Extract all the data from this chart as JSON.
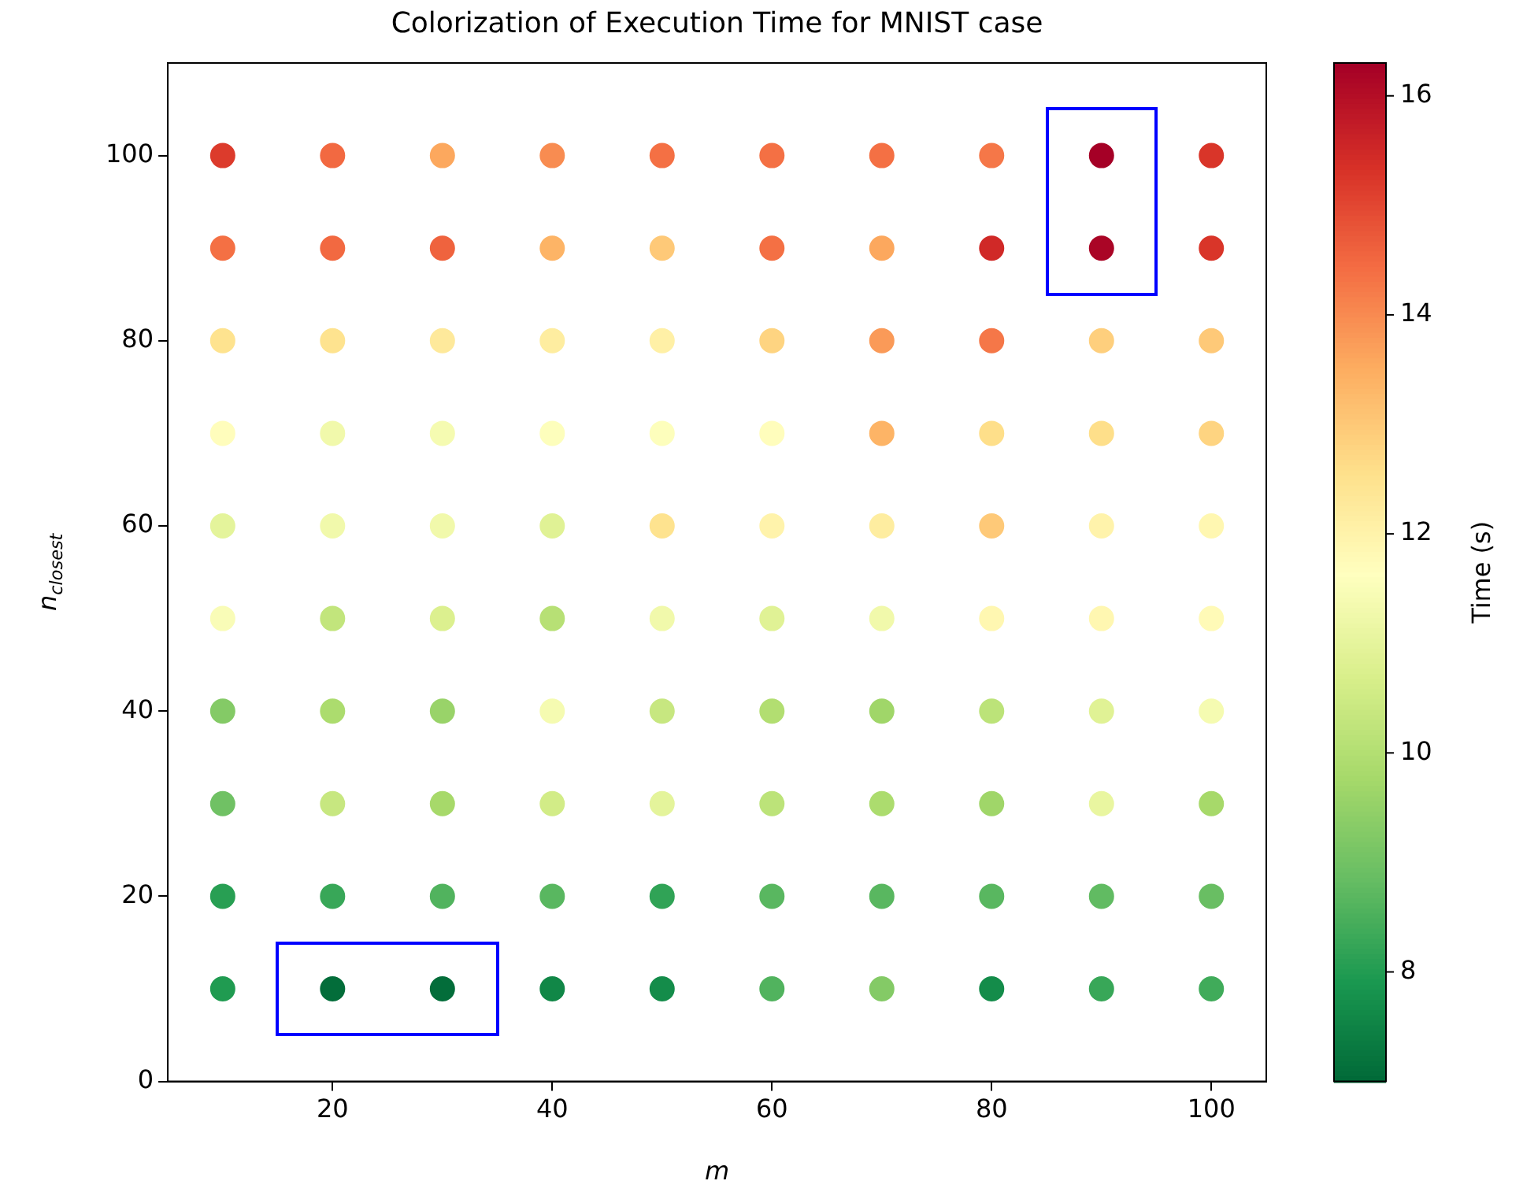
{
  "chart_data": {
    "type": "scatter",
    "title": "Colorization of Execution Time for MNIST case",
    "xlabel": "m",
    "ylabel": "n$_{closest}$",
    "clabel": "Time (s)",
    "xlim": [
      5,
      105
    ],
    "xticks": [
      20,
      40,
      60,
      80,
      100
    ],
    "ylim": [
      0,
      110
    ],
    "yticks": [
      0,
      20,
      40,
      60,
      80,
      100
    ],
    "clim": [
      7.0,
      16.3
    ],
    "cticks": [
      8,
      10,
      12,
      14,
      16
    ],
    "grid": false,
    "legend": false,
    "marker": "circle",
    "series": [
      {
        "x": [
          10,
          20,
          30,
          40,
          50,
          60,
          70,
          80,
          90,
          100
        ],
        "values": [
          100,
          100,
          100,
          100,
          100,
          100,
          100,
          100,
          100,
          100
        ],
        "cvalues": [
          15.2,
          14.5,
          13.6,
          14.0,
          14.4,
          14.4,
          14.4,
          14.3,
          16.3,
          15.3
        ],
        "colors": [
          "#dc3b2c",
          "#f26941",
          "#fca85e",
          "#f88c51",
          "#f47044",
          "#f47044",
          "#f47044",
          "#f57748",
          "#a50026",
          "#d93529"
        ]
      },
      {
        "x": [
          10,
          20,
          30,
          40,
          50,
          60,
          70,
          80,
          90,
          100
        ],
        "values": [
          90,
          90,
          90,
          90,
          90,
          90,
          90,
          90,
          90,
          90
        ],
        "cvalues": [
          14.4,
          14.5,
          14.6,
          13.4,
          13.0,
          14.4,
          13.6,
          15.5,
          16.2,
          15.3
        ],
        "colors": [
          "#f47044",
          "#f26941",
          "#ef633e",
          "#fdb466",
          "#fec978",
          "#f47044",
          "#fca85e",
          "#d02927",
          "#aa0526",
          "#d93529"
        ]
      },
      {
        "x": [
          10,
          20,
          30,
          40,
          50,
          60,
          70,
          80,
          90,
          100
        ],
        "values": [
          80,
          80,
          80,
          80,
          80,
          80,
          80,
          80,
          80,
          80
        ],
        "cvalues": [
          12.5,
          12.5,
          12.3,
          12.2,
          12.1,
          12.8,
          13.8,
          14.3,
          12.9,
          13.0
        ],
        "colors": [
          "#fee38f",
          "#fee38f",
          "#fee99b",
          "#feeda0",
          "#fff0a6",
          "#fed481",
          "#fa9a58",
          "#f57748",
          "#fecf7d",
          "#fec978"
        ]
      },
      {
        "x": [
          10,
          20,
          30,
          40,
          50,
          60,
          70,
          80,
          90,
          100
        ],
        "values": [
          70,
          70,
          70,
          70,
          70,
          70,
          70,
          70,
          70,
          70
        ],
        "cvalues": [
          11.7,
          11.3,
          11.4,
          11.6,
          11.6,
          11.7,
          13.4,
          12.6,
          12.6,
          12.8
        ],
        "colors": [
          "#fffdbc",
          "#f1f9ab",
          "#f5fbb1",
          "#fdfebc",
          "#fdfebc",
          "#fffdbc",
          "#fdb466",
          "#fedf8a",
          "#fedf8a",
          "#fed481"
        ]
      },
      {
        "x": [
          10,
          20,
          30,
          40,
          50,
          60,
          70,
          80,
          90,
          100
        ],
        "values": [
          60,
          60,
          60,
          60,
          60,
          60,
          60,
          60,
          60,
          60
        ],
        "cvalues": [
          11.0,
          11.3,
          11.3,
          10.9,
          12.5,
          12.0,
          12.2,
          13.0,
          12.0,
          11.9
        ],
        "colors": [
          "#e4f49b",
          "#f1f9ab",
          "#f1f9ab",
          "#e0f295",
          "#fee38f",
          "#fff3ab",
          "#feeda0",
          "#fec978",
          "#fff3ab",
          "#fff7b1"
        ]
      },
      {
        "x": [
          10,
          20,
          30,
          40,
          50,
          60,
          70,
          80,
          90,
          100
        ],
        "values": [
          50,
          50,
          50,
          50,
          50,
          50,
          50,
          50,
          50,
          50
        ],
        "cvalues": [
          11.5,
          10.3,
          10.8,
          10.1,
          11.3,
          10.9,
          11.3,
          11.9,
          11.9,
          11.8
        ],
        "colors": [
          "#f9fcb7",
          "#c2e57c",
          "#dcf08f",
          "#b7e075",
          "#f1f9ab",
          "#e0f295",
          "#f1f9ab",
          "#fff7b1",
          "#fff7b1",
          "#fffab7"
        ]
      },
      {
        "x": [
          10,
          20,
          30,
          40,
          50,
          60,
          70,
          80,
          90,
          100
        ],
        "values": [
          40,
          40,
          40,
          40,
          40,
          40,
          40,
          40,
          40,
          40
        ],
        "cvalues": [
          9.3,
          9.9,
          9.6,
          11.4,
          10.4,
          10.0,
          9.7,
          10.2,
          10.9,
          11.4
        ],
        "colors": [
          "#84ca66",
          "#acdc6e",
          "#99d369",
          "#f5fbb1",
          "#c7e780",
          "#b2de71",
          "#a0d669",
          "#bce379",
          "#e0f295",
          "#f5fbb1"
        ]
      },
      {
        "x": [
          10,
          20,
          30,
          40,
          50,
          60,
          70,
          80,
          90,
          100
        ],
        "values": [
          30,
          30,
          30,
          30,
          30,
          30,
          30,
          30,
          30,
          30
        ],
        "cvalues": [
          9.0,
          10.4,
          9.8,
          10.6,
          11.0,
          10.2,
          9.9,
          9.7,
          11.1,
          9.8
        ],
        "colors": [
          "#70c164",
          "#c7e780",
          "#a7d96a",
          "#d2ec87",
          "#e4f49b",
          "#bce379",
          "#acdc6e",
          "#a0d669",
          "#e9f6a0",
          "#a7d96a"
        ]
      },
      {
        "x": [
          10,
          20,
          30,
          40,
          50,
          60,
          70,
          80,
          90,
          100
        ],
        "values": [
          20,
          20,
          20,
          20,
          20,
          20,
          20,
          20,
          20,
          20
        ],
        "cvalues": [
          8.1,
          8.3,
          8.6,
          8.7,
          8.2,
          8.7,
          8.7,
          8.7,
          8.8,
          8.9
        ],
        "colors": [
          "#289f53",
          "#38a758",
          "#51b35e",
          "#59b760",
          "#30a356",
          "#59b760",
          "#59b760",
          "#59b760",
          "#61bb62",
          "#69be63"
        ]
      },
      {
        "x": [
          10,
          20,
          30,
          40,
          50,
          60,
          70,
          80,
          90,
          100
        ],
        "values": [
          10,
          10,
          10,
          10,
          10,
          10,
          10,
          10,
          10,
          10
        ],
        "cvalues": [
          8.0,
          7.1,
          7.1,
          7.6,
          7.7,
          8.6,
          9.3,
          7.7,
          8.3,
          8.4
        ],
        "colors": [
          "#209b51",
          "#036d3a",
          "#036d3a",
          "#118747",
          "#148c4a",
          "#51b35e",
          "#84ca66",
          "#148c4a",
          "#38a758",
          "#40ab5a"
        ]
      }
    ]
  }
}
